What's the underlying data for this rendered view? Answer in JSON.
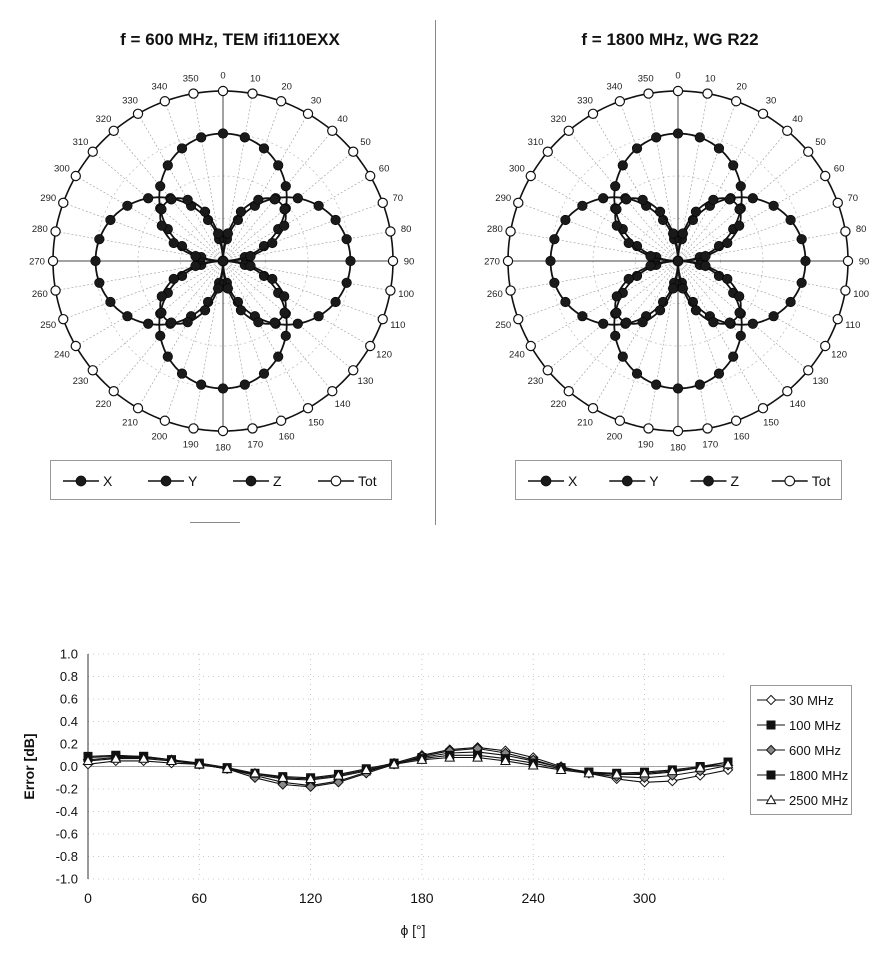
{
  "chart_data": [
    {
      "type": "polar",
      "title": "f = 600 MHz, TEM  ifi110EXX",
      "angle_ticks": [
        "0",
        "10",
        "20",
        "30",
        "40",
        "50",
        "60",
        "70",
        "80",
        "90",
        "100",
        "110",
        "120",
        "130",
        "140",
        "150",
        "160",
        "170",
        "180",
        "190",
        "200",
        "210",
        "220",
        "230",
        "240",
        "250",
        "260",
        "270",
        "280",
        "290",
        "300",
        "310",
        "320",
        "330",
        "340",
        "350"
      ],
      "legend": [
        "X",
        "Y",
        "Z",
        "Tot"
      ],
      "series": [
        {
          "name": "X",
          "pattern": "cos2theta_axis_0_180"
        },
        {
          "name": "Y",
          "pattern": "cos2theta_axis_90_270"
        },
        {
          "name": "Z",
          "pattern": "diagonal_lobes"
        },
        {
          "name": "Tot",
          "radius_fraction": 1.0
        }
      ]
    },
    {
      "type": "polar",
      "title": "f = 1800 MHz, WG R22",
      "angle_ticks": [
        "0",
        "10",
        "20",
        "30",
        "40",
        "50",
        "60",
        "70",
        "80",
        "90",
        "100",
        "110",
        "120",
        "130",
        "140",
        "150",
        "160",
        "170",
        "180",
        "190",
        "200",
        "210",
        "220",
        "230",
        "240",
        "250",
        "260",
        "270",
        "280",
        "290",
        "300",
        "310",
        "320",
        "330",
        "340",
        "350"
      ],
      "legend": [
        "X",
        "Y",
        "Z",
        "Tot"
      ],
      "series": [
        {
          "name": "X",
          "pattern": "cos2theta_axis_0_180"
        },
        {
          "name": "Y",
          "pattern": "cos2theta_axis_90_270"
        },
        {
          "name": "Z",
          "pattern": "diagonal_lobes"
        },
        {
          "name": "Tot",
          "radius_fraction": 1.0
        }
      ]
    },
    {
      "type": "line",
      "ylabel": "Error [dB]",
      "xlabel": "ϕ [°]",
      "xlim": [
        0,
        345
      ],
      "ylim": [
        -1.0,
        1.0
      ],
      "yticks": [
        "1.0",
        "0.8",
        "0.6",
        "0.4",
        "0.2",
        "0.0",
        "-0.2",
        "-0.4",
        "-0.6",
        "-0.8",
        "-1.0"
      ],
      "xticks": [
        "0",
        "60",
        "120",
        "180",
        "240",
        "300"
      ],
      "x": [
        0,
        15,
        30,
        45,
        60,
        75,
        90,
        105,
        120,
        135,
        150,
        165,
        180,
        195,
        210,
        225,
        240,
        255,
        270,
        285,
        300,
        315,
        330,
        345
      ],
      "series": [
        {
          "name": "30 MHz",
          "marker": "diamond-open",
          "values": [
            0.02,
            0.05,
            0.05,
            0.03,
            0.02,
            -0.02,
            -0.08,
            -0.14,
            -0.17,
            -0.13,
            -0.05,
            0.03,
            0.1,
            0.15,
            0.17,
            0.14,
            0.08,
            0.0,
            -0.06,
            -0.11,
            -0.14,
            -0.13,
            -0.08,
            -0.03
          ]
        },
        {
          "name": "100 MHz",
          "marker": "square-filled",
          "values": [
            0.09,
            0.1,
            0.09,
            0.06,
            0.02,
            -0.02,
            -0.07,
            -0.11,
            -0.12,
            -0.09,
            -0.04,
            0.02,
            0.08,
            0.12,
            0.13,
            0.1,
            0.05,
            -0.01,
            -0.05,
            -0.07,
            -0.07,
            -0.05,
            -0.01,
            0.04
          ]
        },
        {
          "name": "600 MHz",
          "marker": "diamond-filled",
          "values": [
            0.06,
            0.08,
            0.08,
            0.06,
            0.02,
            -0.02,
            -0.1,
            -0.16,
            -0.18,
            -0.14,
            -0.06,
            0.02,
            0.09,
            0.14,
            0.16,
            0.12,
            0.06,
            -0.01,
            -0.06,
            -0.09,
            -0.1,
            -0.08,
            -0.04,
            0.01
          ]
        },
        {
          "name": "1800 MHz",
          "marker": "square-filled",
          "values": [
            0.08,
            0.09,
            0.09,
            0.06,
            0.03,
            -0.01,
            -0.06,
            -0.09,
            -0.1,
            -0.07,
            -0.02,
            0.03,
            0.07,
            0.1,
            0.1,
            0.07,
            0.03,
            -0.02,
            -0.05,
            -0.06,
            -0.05,
            -0.03,
            0.0,
            0.04
          ]
        },
        {
          "name": "2500 MHz",
          "marker": "triangle-open",
          "values": [
            0.05,
            0.07,
            0.07,
            0.05,
            0.02,
            -0.02,
            -0.06,
            -0.1,
            -0.11,
            -0.08,
            -0.03,
            0.02,
            0.06,
            0.08,
            0.08,
            0.05,
            0.01,
            -0.03,
            -0.06,
            -0.07,
            -0.06,
            -0.04,
            -0.01,
            0.02
          ]
        }
      ]
    }
  ]
}
